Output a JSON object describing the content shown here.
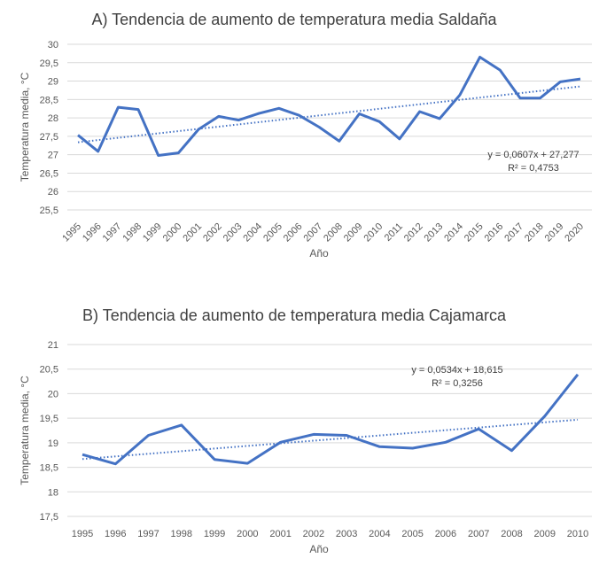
{
  "chart_data": [
    {
      "type": "line",
      "title": "A) Tendencia de aumento de temperatura media Saldaña",
      "xlabel": "Año",
      "ylabel": "Temperatura media, °C",
      "ylim": [
        25.5,
        30
      ],
      "yticks": [
        "25,5",
        "26",
        "26,5",
        "27",
        "27,5",
        "28",
        "28,5",
        "29",
        "29,5",
        "30"
      ],
      "grid": true,
      "x": [
        "1995",
        "1996",
        "1997",
        "1998",
        "1999",
        "2000",
        "2001",
        "2002",
        "2003",
        "2004",
        "2005",
        "2006",
        "2007",
        "2008",
        "2009",
        "2010",
        "2011",
        "2012",
        "2013",
        "2014",
        "2015",
        "2016",
        "2017",
        "2018",
        "2019",
        "2020"
      ],
      "values": [
        27.53,
        27.09,
        28.29,
        28.23,
        26.98,
        27.05,
        27.69,
        28.04,
        27.94,
        28.12,
        28.26,
        28.07,
        27.75,
        27.37,
        28.11,
        27.9,
        27.43,
        28.17,
        27.98,
        28.62,
        29.65,
        29.3,
        28.54,
        28.54,
        28.98,
        29.06
      ],
      "trendline": {
        "slope": 0.0607,
        "intercept": 27.277,
        "equation": "y = 0,0607x + 27,277",
        "r2": "R² = 0,4753"
      },
      "line_color": "#4472C4",
      "x_labels_rotated": true
    },
    {
      "type": "line",
      "title": "B) Tendencia de aumento de temperatura media Cajamarca",
      "xlabel": "Año",
      "ylabel": "Temperatura media, °C",
      "ylim": [
        17.5,
        21
      ],
      "yticks": [
        "17,5",
        "18",
        "18,5",
        "19",
        "19,5",
        "20",
        "20,5",
        "21"
      ],
      "grid": true,
      "x": [
        "1995",
        "1996",
        "1997",
        "1998",
        "1999",
        "2000",
        "2001",
        "2002",
        "2003",
        "2004",
        "2005",
        "2006",
        "2007",
        "2008",
        "2009",
        "2010"
      ],
      "values": [
        18.76,
        18.57,
        19.15,
        19.36,
        18.66,
        18.58,
        19.01,
        19.17,
        19.15,
        18.92,
        18.89,
        19.01,
        19.28,
        18.84,
        19.54,
        20.39
      ],
      "trendline": {
        "slope": 0.0534,
        "intercept": 18.615,
        "equation": "y = 0,0534x + 18,615",
        "r2": "R² = 0,3256"
      },
      "line_color": "#4472C4",
      "x_labels_rotated": false
    }
  ]
}
